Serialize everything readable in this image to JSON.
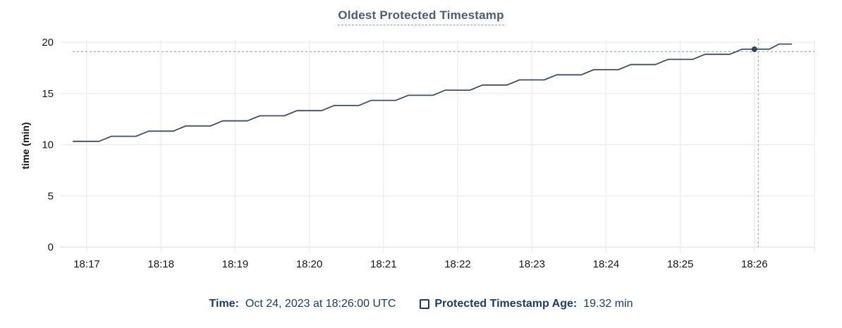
{
  "tooltip": {
    "time_label": "Time:",
    "time_value": "Oct 24, 2023 at 18:26:00 UTC",
    "age_label": "Protected Timestamp Age:",
    "age_value": "19.32 min"
  },
  "colors": {
    "line": "#3f4e69",
    "dot": "#36455f",
    "crosshair": "#9db1c5",
    "grid": "#ececec",
    "title": "#4a5c78",
    "legend_text": "#1b3c5f",
    "tick_text": "#161616"
  },
  "chart_data": {
    "type": "line",
    "title": "Oldest Protected Timestamp",
    "xlabel": "",
    "ylabel": "time (min)",
    "ylim": [
      0,
      20
    ],
    "y_ticks": [
      0,
      5,
      10,
      15,
      20
    ],
    "x_ticks": [
      "18:17",
      "18:18",
      "18:19",
      "18:20",
      "18:21",
      "18:22",
      "18:23",
      "18:24",
      "18:25",
      "18:26"
    ],
    "grid": true,
    "legend_position": "bottom",
    "series": [
      {
        "name": "Protected Timestamp Age",
        "unit": "min",
        "points": [
          {
            "t": "18:16:49",
            "v": 10.32
          },
          {
            "t": "18:17:10",
            "v": 10.32
          },
          {
            "t": "18:17:20",
            "v": 10.82
          },
          {
            "t": "18:17:40",
            "v": 10.82
          },
          {
            "t": "18:17:50",
            "v": 11.32
          },
          {
            "t": "18:18:10",
            "v": 11.32
          },
          {
            "t": "18:18:20",
            "v": 11.82
          },
          {
            "t": "18:18:40",
            "v": 11.82
          },
          {
            "t": "18:18:50",
            "v": 12.32
          },
          {
            "t": "18:19:10",
            "v": 12.32
          },
          {
            "t": "18:19:20",
            "v": 12.82
          },
          {
            "t": "18:19:40",
            "v": 12.82
          },
          {
            "t": "18:19:50",
            "v": 13.32
          },
          {
            "t": "18:20:10",
            "v": 13.32
          },
          {
            "t": "18:20:20",
            "v": 13.82
          },
          {
            "t": "18:20:40",
            "v": 13.82
          },
          {
            "t": "18:20:50",
            "v": 14.32
          },
          {
            "t": "18:21:10",
            "v": 14.32
          },
          {
            "t": "18:21:20",
            "v": 14.82
          },
          {
            "t": "18:21:40",
            "v": 14.82
          },
          {
            "t": "18:21:50",
            "v": 15.32
          },
          {
            "t": "18:22:10",
            "v": 15.32
          },
          {
            "t": "18:22:20",
            "v": 15.82
          },
          {
            "t": "18:22:40",
            "v": 15.82
          },
          {
            "t": "18:22:50",
            "v": 16.32
          },
          {
            "t": "18:23:10",
            "v": 16.32
          },
          {
            "t": "18:23:20",
            "v": 16.82
          },
          {
            "t": "18:23:40",
            "v": 16.82
          },
          {
            "t": "18:23:50",
            "v": 17.32
          },
          {
            "t": "18:24:10",
            "v": 17.32
          },
          {
            "t": "18:24:20",
            "v": 17.82
          },
          {
            "t": "18:24:40",
            "v": 17.82
          },
          {
            "t": "18:24:50",
            "v": 18.32
          },
          {
            "t": "18:25:10",
            "v": 18.32
          },
          {
            "t": "18:25:20",
            "v": 18.82
          },
          {
            "t": "18:25:40",
            "v": 18.82
          },
          {
            "t": "18:25:50",
            "v": 19.32
          },
          {
            "t": "18:26:12",
            "v": 19.32
          },
          {
            "t": "18:26:20",
            "v": 19.82
          },
          {
            "t": "18:26:30",
            "v": 19.82
          }
        ]
      }
    ],
    "highlight": {
      "t": "18:26:00",
      "v": 19.32
    }
  }
}
